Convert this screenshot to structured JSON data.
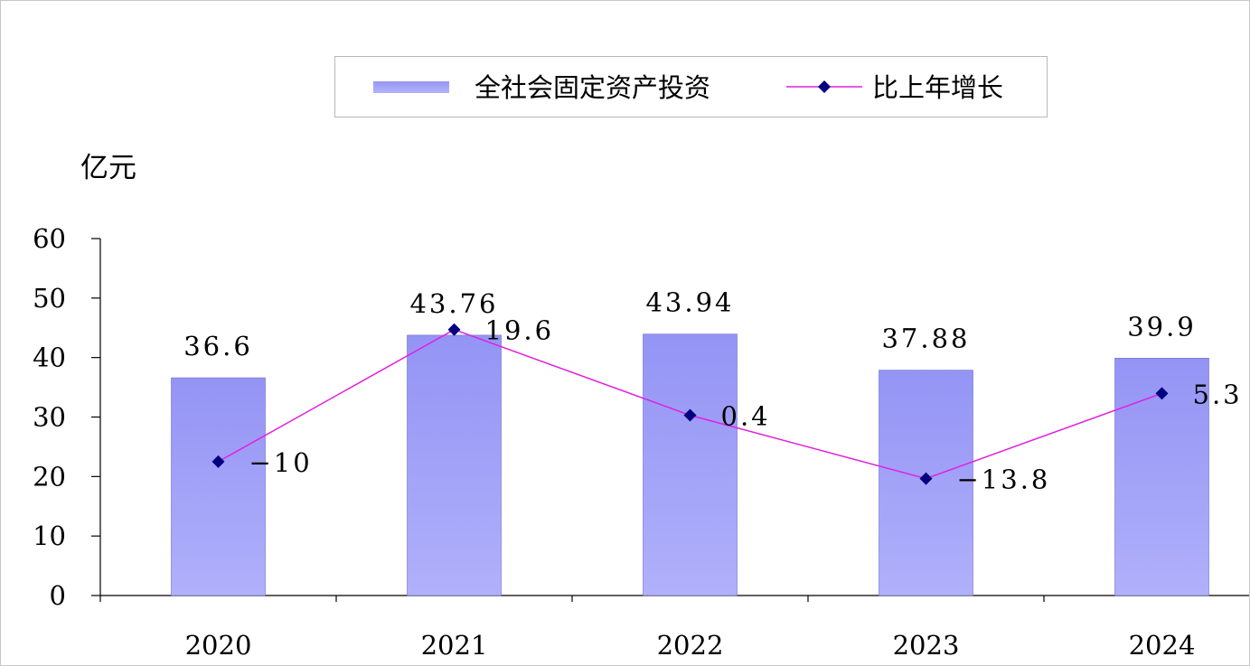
{
  "chart_data": {
    "type": "bar",
    "unit_label": "亿元",
    "categories": [
      "2020",
      "2021",
      "2022",
      "2023",
      "2024"
    ],
    "series": [
      {
        "name": "全社会固定资产投资",
        "type": "bar",
        "values": [
          36.6,
          43.76,
          43.94,
          37.88,
          39.9
        ],
        "labels": [
          "36.6",
          "43.76",
          "43.94",
          "37.88",
          "39.9"
        ],
        "color": "#9b9bf7"
      },
      {
        "name": "比上年增长",
        "type": "line",
        "values": [
          -10,
          19.6,
          0.4,
          -13.8,
          5.3
        ],
        "labels": [
          "−10",
          "19.6",
          "0.4",
          "−13.8",
          "5.3"
        ],
        "line_color": "#e020e0",
        "marker_color": "#000080",
        "marker": "diamond"
      }
    ],
    "y_axis": {
      "min": 0,
      "max": 60,
      "ticks": [
        "0",
        "10",
        "20",
        "30",
        "40",
        "50",
        "60"
      ]
    },
    "legend_placement": "top-center",
    "grid": false
  }
}
